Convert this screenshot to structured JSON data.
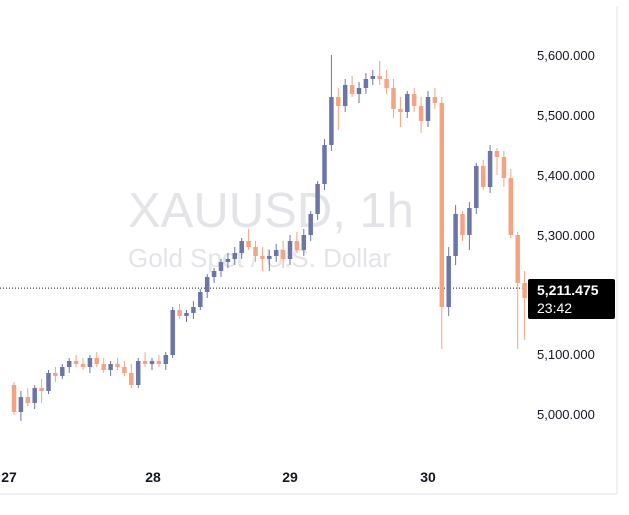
{
  "chart_data": {
    "type": "candlestick",
    "symbol": "XAUUSD, 1h",
    "description": "Gold Spot / U.S. Dollar",
    "x_tick_labels": [
      "27",
      "28",
      "29",
      "30"
    ],
    "y_tick_labels": [
      "5,600.000",
      "5,500.000",
      "5,400.000",
      "5,300.000",
      "5,100.000",
      "5,000.000"
    ],
    "ylim": [
      4965,
      5645
    ],
    "current_price": 5211.475,
    "current_price_label": "5,211.475",
    "countdown_label": "23:42",
    "grid": false,
    "up_color": "#6b76a8",
    "down_color": "#f4a482",
    "candles": [
      [
        5050,
        5055,
        5000,
        5005
      ],
      [
        5005,
        5040,
        4990,
        5030
      ],
      [
        5030,
        5045,
        5015,
        5020
      ],
      [
        5020,
        5050,
        5010,
        5045
      ],
      [
        5045,
        5060,
        5020,
        5040
      ],
      [
        5040,
        5075,
        5035,
        5070
      ],
      [
        5070,
        5080,
        5055,
        5065
      ],
      [
        5065,
        5085,
        5060,
        5080
      ],
      [
        5080,
        5095,
        5070,
        5090
      ],
      [
        5090,
        5100,
        5080,
        5085
      ],
      [
        5085,
        5095,
        5075,
        5080
      ],
      [
        5080,
        5100,
        5070,
        5095
      ],
      [
        5095,
        5105,
        5080,
        5085
      ],
      [
        5085,
        5095,
        5070,
        5075
      ],
      [
        5075,
        5090,
        5065,
        5085
      ],
      [
        5085,
        5095,
        5075,
        5080
      ],
      [
        5080,
        5090,
        5065,
        5070
      ],
      [
        5070,
        5085,
        5045,
        5050
      ],
      [
        5050,
        5095,
        5045,
        5090
      ],
      [
        5090,
        5105,
        5080,
        5085
      ],
      [
        5085,
        5095,
        5075,
        5090
      ],
      [
        5090,
        5100,
        5080,
        5085
      ],
      [
        5085,
        5105,
        5075,
        5100
      ],
      [
        5100,
        5180,
        5095,
        5175
      ],
      [
        5175,
        5185,
        5160,
        5165
      ],
      [
        5165,
        5175,
        5155,
        5170
      ],
      [
        5170,
        5190,
        5160,
        5180
      ],
      [
        5180,
        5210,
        5175,
        5205
      ],
      [
        5205,
        5235,
        5195,
        5230
      ],
      [
        5230,
        5245,
        5220,
        5240
      ],
      [
        5240,
        5260,
        5230,
        5255
      ],
      [
        5255,
        5270,
        5245,
        5260
      ],
      [
        5260,
        5280,
        5250,
        5270
      ],
      [
        5270,
        5295,
        5260,
        5290
      ],
      [
        5290,
        5310,
        5275,
        5280
      ],
      [
        5280,
        5290,
        5255,
        5265
      ],
      [
        5265,
        5280,
        5240,
        5260
      ],
      [
        5260,
        5275,
        5240,
        5265
      ],
      [
        5265,
        5285,
        5255,
        5275
      ],
      [
        5275,
        5290,
        5245,
        5260
      ],
      [
        5260,
        5300,
        5250,
        5290
      ],
      [
        5290,
        5305,
        5270,
        5275
      ],
      [
        5275,
        5310,
        5265,
        5300
      ],
      [
        5300,
        5340,
        5290,
        5335
      ],
      [
        5335,
        5390,
        5325,
        5385
      ],
      [
        5385,
        5460,
        5375,
        5450
      ],
      [
        5450,
        5600,
        5440,
        5530
      ],
      [
        5530,
        5545,
        5475,
        5515
      ],
      [
        5515,
        5560,
        5505,
        5550
      ],
      [
        5550,
        5565,
        5530,
        5535
      ],
      [
        5535,
        5555,
        5520,
        5545
      ],
      [
        5545,
        5570,
        5535,
        5560
      ],
      [
        5560,
        5575,
        5550,
        5565
      ],
      [
        5565,
        5590,
        5550,
        5560
      ],
      [
        5560,
        5575,
        5535,
        5545
      ],
      [
        5545,
        5560,
        5495,
        5510
      ],
      [
        5510,
        5530,
        5480,
        5505
      ],
      [
        5505,
        5540,
        5495,
        5535
      ],
      [
        5535,
        5545,
        5505,
        5515
      ],
      [
        5515,
        5530,
        5470,
        5490
      ],
      [
        5490,
        5540,
        5480,
        5530
      ],
      [
        5530,
        5545,
        5510,
        5520
      ],
      [
        5520,
        5530,
        5110,
        5180
      ],
      [
        5180,
        5280,
        5165,
        5265
      ],
      [
        5265,
        5350,
        5250,
        5335
      ],
      [
        5335,
        5340,
        5290,
        5300
      ],
      [
        5300,
        5355,
        5275,
        5345
      ],
      [
        5345,
        5420,
        5335,
        5415
      ],
      [
        5415,
        5425,
        5375,
        5380
      ],
      [
        5380,
        5450,
        5370,
        5440
      ],
      [
        5440,
        5445,
        5400,
        5430
      ],
      [
        5430,
        5440,
        5380,
        5395
      ],
      [
        5395,
        5410,
        5295,
        5300
      ],
      [
        5300,
        5305,
        5110,
        5220
      ],
      [
        5220,
        5240,
        5125,
        5195
      ],
      [
        5195,
        5225,
        5190,
        5210
      ]
    ]
  }
}
